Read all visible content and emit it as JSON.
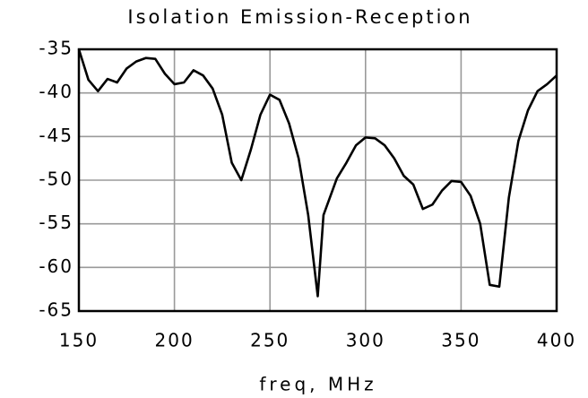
{
  "chart_data": {
    "type": "line",
    "title": "Isolation Emission-Reception",
    "xlabel": "freq, MHz",
    "x": [
      150,
      155,
      160,
      165,
      170,
      175,
      180,
      185,
      190,
      195,
      200,
      205,
      210,
      215,
      220,
      225,
      230,
      235,
      240,
      245,
      250,
      255,
      260,
      265,
      270,
      275,
      278,
      285,
      290,
      295,
      300,
      305,
      310,
      315,
      320,
      325,
      330,
      335,
      340,
      345,
      350,
      355,
      360,
      365,
      370,
      375,
      380,
      385,
      390,
      395,
      400
    ],
    "values": [
      -35,
      -38.5,
      -39.8,
      -38.4,
      -38.8,
      -37.2,
      -36.4,
      -36,
      -36.1,
      -37.8,
      -39,
      -38.8,
      -37.4,
      -38,
      -39.5,
      -42.5,
      -48,
      -50,
      -46.5,
      -42.5,
      -40.2,
      -40.8,
      -43.5,
      -47.5,
      -54,
      -63.3,
      -54,
      -49.8,
      -48,
      -46,
      -45.1,
      -45.2,
      -46,
      -47.5,
      -49.5,
      -50.5,
      -53.3,
      -52.8,
      -51.2,
      -50.1,
      -50.2,
      -51.8,
      -55,
      -62,
      -62.2,
      -52,
      -45.5,
      -42,
      -39.8,
      -39,
      -38
    ],
    "color": "#000000",
    "xlim": [
      150,
      400
    ],
    "xticks": [
      150,
      200,
      250,
      300,
      350,
      400
    ],
    "ylim": [
      -65,
      -35
    ],
    "yticks": [
      -65,
      -60,
      -55,
      -50,
      -45,
      -40,
      -35
    ],
    "grid": true
  }
}
